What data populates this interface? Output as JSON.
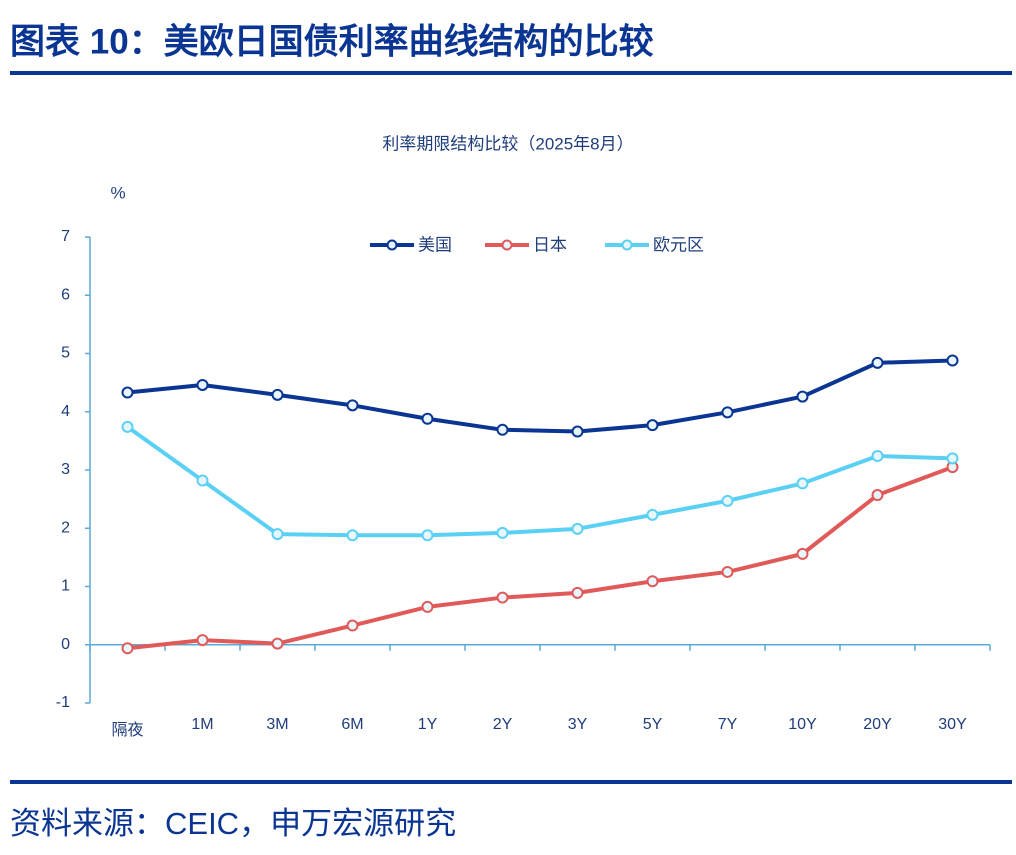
{
  "header": {
    "title": "图表 10：美欧日国债利率曲线结构的比较"
  },
  "chart_data": {
    "type": "line",
    "title": "利率期限结构比较（2025年8月）",
    "ylabel": "%",
    "categories": [
      "隔夜",
      "1M",
      "3M",
      "6M",
      "1Y",
      "2Y",
      "3Y",
      "5Y",
      "7Y",
      "10Y",
      "20Y",
      "30Y"
    ],
    "series": [
      {
        "name": "美国",
        "color": "#0a3592",
        "values": [
          4.33,
          4.46,
          4.29,
          4.11,
          3.88,
          3.69,
          3.66,
          3.77,
          3.99,
          4.26,
          4.84,
          4.88
        ]
      },
      {
        "name": "日本",
        "color": "#e05a5a",
        "values": [
          -0.06,
          0.08,
          0.02,
          0.33,
          0.65,
          0.81,
          0.89,
          1.09,
          1.25,
          1.56,
          2.57,
          3.05
        ]
      },
      {
        "name": "欧元区",
        "color": "#5bd0f5",
        "values": [
          3.74,
          2.82,
          1.9,
          1.88,
          1.88,
          1.92,
          1.99,
          2.23,
          2.47,
          2.77,
          3.24,
          3.2
        ]
      }
    ],
    "ylim": [
      -1,
      7
    ],
    "yticks": [
      -1,
      0,
      1,
      2,
      3,
      4,
      5,
      6,
      7
    ],
    "grid": false,
    "legend": "top"
  },
  "footer": {
    "source": "资料来源：CEIC，申万宏源研究"
  }
}
